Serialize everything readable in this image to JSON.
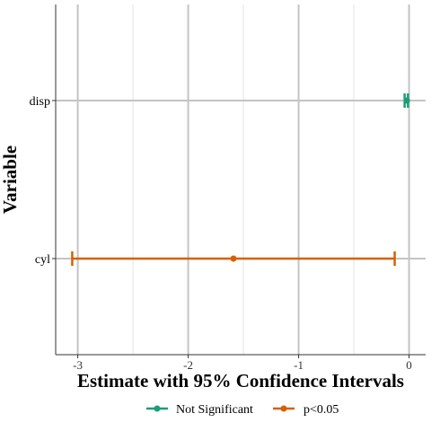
{
  "chart_data": {
    "type": "forest",
    "title": "",
    "xlabel": "Estimate with 95% Confidence Intervals",
    "ylabel": "Variable",
    "xlim": [
      -3.2,
      0.15
    ],
    "x_ticks": [
      -3,
      -2,
      -1,
      0
    ],
    "x_tick_labels": [
      "-3",
      "-2",
      "-1",
      "0"
    ],
    "x_minor_ticks": [
      -2.5,
      -1.5,
      -0.5
    ],
    "y_categories": [
      "disp",
      "cyl"
    ],
    "grid": true,
    "legend_position": "bottom",
    "series": [
      {
        "name": "Not Significant",
        "color": "#1B9E77"
      },
      {
        "name": "p<0.05",
        "color": "#D95F02"
      }
    ],
    "points": [
      {
        "variable": "disp",
        "estimate": -0.02,
        "ci_low": -0.04,
        "ci_high": -0.01,
        "group": "Not Significant"
      },
      {
        "variable": "cyl",
        "estimate": -1.59,
        "ci_low": -3.05,
        "ci_high": -0.13,
        "group": "p<0.05"
      }
    ]
  }
}
